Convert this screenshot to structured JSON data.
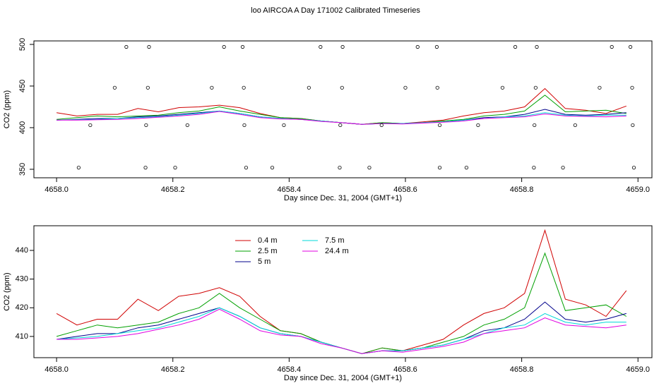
{
  "title": "loo AIRCOA A  Day 171002  Calibrated Timeseries",
  "chart_data": [
    {
      "type": "line",
      "ylabel": "CO2 (ppm)",
      "xlabel": "Day since Dec. 31, 2004 (GMT+1)",
      "xlim": [
        4657.961,
        4659.024
      ],
      "ylim": [
        339.8,
        504.2
      ],
      "xticks": [
        {
          "value": 4658,
          "label": "4658.0"
        },
        4658.2,
        4658.4,
        4658.6,
        4658.8,
        {
          "value": 4659,
          "label": "4659.0"
        }
      ],
      "yticks": [
        350,
        400,
        450,
        500
      ],
      "x": [
        4658.0,
        4658.035,
        4658.07,
        4658.105,
        4658.14,
        4658.175,
        4658.21,
        4658.245,
        4658.28,
        4658.315,
        4658.35,
        4658.385,
        4658.42,
        4658.455,
        4658.49,
        4658.525,
        4658.56,
        4658.595,
        4658.63,
        4658.665,
        4658.7,
        4658.735,
        4658.77,
        4658.805,
        4658.84,
        4658.875,
        4658.91,
        4658.945,
        4658.98
      ],
      "series": [
        {
          "color": "#d00000",
          "values": [
            418,
            414,
            416,
            416,
            423,
            419,
            424,
            425,
            427,
            424,
            417,
            412,
            411,
            408,
            406,
            404,
            406,
            405,
            407,
            409,
            414,
            418,
            420,
            425,
            447,
            423,
            421,
            417,
            426
          ]
        },
        {
          "color": "#00a000",
          "values": [
            410,
            412,
            414,
            413,
            414,
            415,
            418,
            420,
            425,
            420,
            416,
            412,
            411,
            408,
            406,
            404,
            406,
            405,
            406,
            408,
            410,
            414,
            416,
            420,
            439,
            419,
            420,
            421,
            417
          ]
        },
        {
          "color": "#00008b",
          "values": [
            409,
            410,
            411,
            411,
            413,
            414,
            416,
            418,
            420,
            417,
            413,
            411,
            410,
            408,
            406,
            404,
            405,
            405,
            406,
            407,
            409,
            412,
            413,
            416,
            422,
            416,
            415,
            416,
            418
          ]
        },
        {
          "color": "#00d8d8",
          "values": [
            409,
            409.5,
            410,
            411,
            412,
            413,
            415,
            417,
            420,
            417,
            413,
            411,
            410,
            408,
            406,
            404,
            405,
            405,
            406,
            407,
            409,
            411,
            413,
            414,
            418,
            415,
            414,
            415,
            415
          ]
        },
        {
          "color": "#e000e0",
          "values": [
            409,
            409,
            409.5,
            410,
            411,
            412.5,
            414,
            416,
            419.5,
            416,
            412,
            410.5,
            410,
            407.5,
            406,
            404,
            405,
            404.5,
            405.5,
            406.5,
            408,
            411,
            412,
            413,
            416.5,
            414,
            413.5,
            413,
            414
          ]
        }
      ],
      "points": {
        "x": [
          4658.12,
          4658.159,
          4658.288,
          4658.32,
          4658.454,
          4658.492,
          4658.621,
          4658.654,
          4658.789,
          4658.826,
          4658.955,
          4658.987,
          4658.1,
          4658.157,
          4658.267,
          4658.322,
          4658.434,
          4658.491,
          4658.6,
          4658.655,
          4658.767,
          4658.824,
          4658.934,
          4658.99,
          4658.058,
          4658.154,
          4658.225,
          4658.323,
          4658.391,
          4658.488,
          4658.559,
          4658.659,
          4658.725,
          4658.822,
          4658.892,
          4658.991,
          4658.038,
          4658.153,
          4658.204,
          4658.326,
          4658.371,
          4658.487,
          4658.538,
          4658.659,
          4658.705,
          4658.821,
          4658.871,
          4658.993
        ],
        "y": [
          497,
          497,
          497,
          497,
          497,
          497,
          497,
          497,
          497,
          497,
          497,
          497,
          448,
          448,
          448,
          448,
          448,
          448,
          448,
          448,
          448,
          448,
          448,
          448,
          403,
          403,
          403,
          403,
          403,
          403,
          403,
          403,
          403,
          403,
          403,
          403,
          352,
          352,
          352,
          352,
          352,
          352,
          352,
          352,
          352,
          352,
          352,
          352
        ]
      }
    },
    {
      "type": "line",
      "ylabel": "CO2 (ppm)",
      "xlabel": "Day since Dec. 31, 2004 (GMT+1)",
      "xlim": [
        4657.961,
        4659.024
      ],
      "ylim": [
        402.6,
        448.6
      ],
      "xticks": [
        {
          "value": 4658,
          "label": "4658.0"
        },
        4658.2,
        4658.4,
        4658.6,
        4658.8,
        {
          "value": 4659,
          "label": "4659.0"
        }
      ],
      "yticks": [
        410,
        420,
        430,
        440
      ],
      "legend": "top-left",
      "x": [
        4658.0,
        4658.035,
        4658.07,
        4658.105,
        4658.14,
        4658.175,
        4658.21,
        4658.245,
        4658.28,
        4658.315,
        4658.35,
        4658.385,
        4658.42,
        4658.455,
        4658.49,
        4658.525,
        4658.56,
        4658.595,
        4658.63,
        4658.665,
        4658.7,
        4658.735,
        4658.77,
        4658.805,
        4658.84,
        4658.875,
        4658.91,
        4658.945,
        4658.98
      ],
      "series": [
        {
          "name": "0.4 m",
          "color": "#d00000",
          "values": [
            418,
            414,
            416,
            416,
            423,
            419,
            424,
            425,
            427,
            424,
            417,
            412,
            411,
            408,
            406,
            404,
            406,
            405,
            407,
            409,
            414,
            418,
            420,
            425,
            447,
            423,
            421,
            417,
            426
          ]
        },
        {
          "name": "2.5 m",
          "color": "#00a000",
          "values": [
            410,
            412,
            414,
            413,
            414,
            415,
            418,
            420,
            425,
            420,
            416,
            412,
            411,
            408,
            406,
            404,
            406,
            405,
            406,
            408,
            410,
            414,
            416,
            420,
            439,
            419,
            420,
            421,
            417
          ]
        },
        {
          "name": "5 m",
          "color": "#00008b",
          "values": [
            409,
            410,
            411,
            411,
            413,
            414,
            416,
            418,
            420,
            417,
            413,
            411,
            410,
            408,
            406,
            404,
            405,
            405,
            406,
            407,
            409,
            412,
            413,
            416,
            422,
            416,
            415,
            416,
            418
          ]
        },
        {
          "name": "7.5 m",
          "color": "#00d8d8",
          "values": [
            409,
            409.5,
            410,
            411,
            412,
            413,
            415,
            417,
            420,
            417,
            413,
            411,
            410,
            408,
            406,
            404,
            405,
            405,
            406,
            407,
            409,
            411,
            413,
            414,
            418,
            415,
            414,
            415,
            415
          ]
        },
        {
          "name": "24.4 m",
          "color": "#e000e0",
          "values": [
            409,
            409,
            409.5,
            410,
            411,
            412.5,
            414,
            416,
            419.5,
            416,
            412,
            410.5,
            410,
            407.5,
            406,
            404,
            405,
            404.5,
            405.5,
            406.5,
            408,
            411,
            412,
            413,
            416.5,
            414,
            413.5,
            413,
            414
          ]
        }
      ]
    }
  ]
}
